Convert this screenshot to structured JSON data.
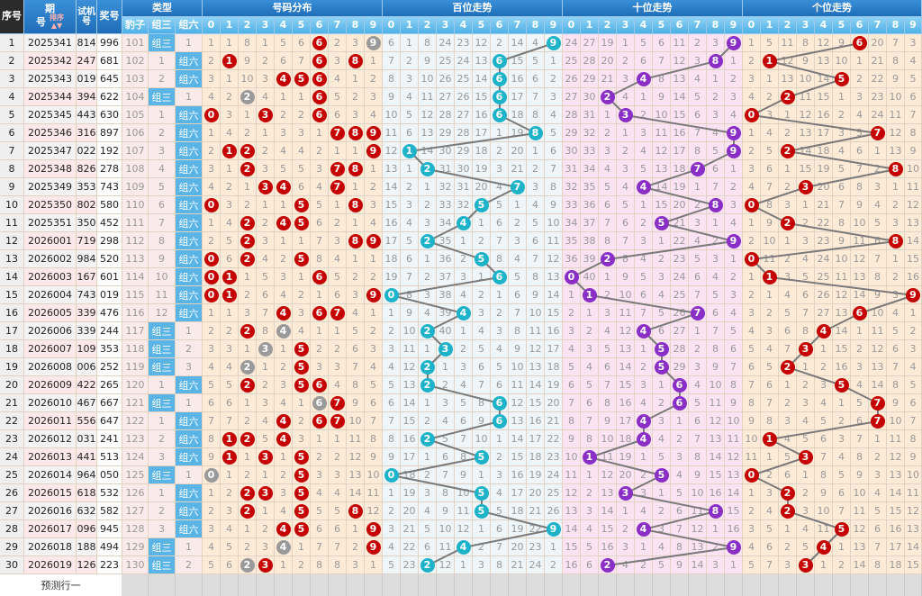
{
  "header": {
    "index": "序号",
    "period_top": "期",
    "period_bottom": "号",
    "sort": "排序",
    "trial_top": "试机",
    "trial_bottom": "号",
    "draw": "奖号",
    "type_group": "类型",
    "type_cols": [
      "豹子",
      "组三",
      "组六"
    ],
    "dist_group": "号码分布",
    "hundreds_group": "百位走势",
    "tens_group": "十位走势",
    "units_group": "个位走势",
    "digits": [
      "0",
      "1",
      "2",
      "3",
      "4",
      "5",
      "6",
      "7",
      "8",
      "9"
    ]
  },
  "labels": {
    "zusan": "组三",
    "zuliu": "组六"
  },
  "rows": [
    {
      "period": "2025341",
      "trial": "814",
      "draw": "996"
    },
    {
      "period": "2025342",
      "trial": "247",
      "draw": "681"
    },
    {
      "period": "2025343",
      "trial": "019",
      "draw": "645"
    },
    {
      "period": "2025344",
      "trial": "394",
      "draw": "622"
    },
    {
      "period": "2025345",
      "trial": "443",
      "draw": "630"
    },
    {
      "period": "2025346",
      "trial": "316",
      "draw": "897"
    },
    {
      "period": "2025347",
      "trial": "022",
      "draw": "192"
    },
    {
      "period": "2025348",
      "trial": "826",
      "draw": "278"
    },
    {
      "period": "2025349",
      "trial": "353",
      "draw": "743"
    },
    {
      "period": "2025350",
      "trial": "802",
      "draw": "580"
    },
    {
      "period": "2025351",
      "trial": "350",
      "draw": "452"
    },
    {
      "period": "2026001",
      "trial": "719",
      "draw": "298"
    },
    {
      "period": "2026002",
      "trial": "984",
      "draw": "520"
    },
    {
      "period": "2026003",
      "trial": "167",
      "draw": "601"
    },
    {
      "period": "2026004",
      "trial": "743",
      "draw": "019"
    },
    {
      "period": "2026005",
      "trial": "339",
      "draw": "476"
    },
    {
      "period": "2026006",
      "trial": "339",
      "draw": "244"
    },
    {
      "period": "2026007",
      "trial": "109",
      "draw": "353"
    },
    {
      "period": "2026008",
      "trial": "006",
      "draw": "252"
    },
    {
      "period": "2026009",
      "trial": "422",
      "draw": "265"
    },
    {
      "period": "2026010",
      "trial": "467",
      "draw": "667"
    },
    {
      "period": "2026011",
      "trial": "556",
      "draw": "647"
    },
    {
      "period": "2026012",
      "trial": "031",
      "draw": "241"
    },
    {
      "period": "2026013",
      "trial": "441",
      "draw": "513"
    },
    {
      "period": "2026014",
      "trial": "964",
      "draw": "050"
    },
    {
      "period": "2026015",
      "trial": "618",
      "draw": "532"
    },
    {
      "period": "2026016",
      "trial": "632",
      "draw": "582"
    },
    {
      "period": "2026017",
      "trial": "096",
      "draw": "945"
    },
    {
      "period": "2026018",
      "trial": "188",
      "draw": "494"
    },
    {
      "period": "2026019",
      "trial": "126",
      "draw": "223"
    }
  ],
  "first_row_miss": {
    "baozi": 101,
    "zuliu": 1,
    "dist": [
      1,
      1,
      8,
      1,
      5,
      6,
      0,
      2,
      3,
      0
    ],
    "hundreds": [
      6,
      1,
      8,
      24,
      23,
      12,
      2,
      14,
      4,
      0
    ],
    "tens": [
      24,
      27,
      19,
      1,
      5,
      6,
      11,
      2,
      3,
      0
    ],
    "units": [
      1,
      5,
      11,
      8,
      12,
      9,
      0,
      20,
      7,
      3
    ]
  },
  "footer": {
    "forecast_label": "预测行一"
  },
  "colors": {
    "header_dark": "#1f6db8",
    "header_light": "#4fb0e6",
    "hit_red": "#c40000",
    "repeat_gray": "#9a9a9a",
    "hundreds_ball": "#1fb3c9",
    "tens_ball": "#8a2fc6",
    "units_ball": "#c40000",
    "dist_bg": "#fdebd7",
    "hundreds_bg": "#eef6f9",
    "tens_bg": "#fce3f3",
    "units_bg": "#fdebd7",
    "type_label_bg": "#5ab4e5"
  }
}
